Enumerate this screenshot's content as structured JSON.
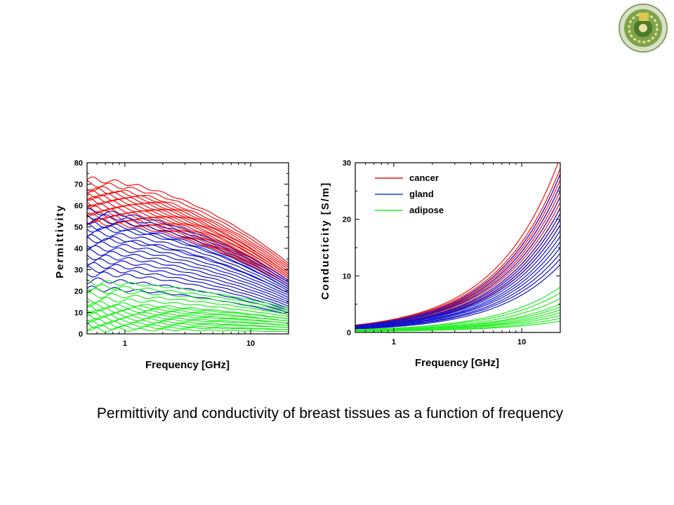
{
  "caption": "Permittivity and conductivity of breast tissues as a function of frequency",
  "colors": {
    "cancer": "#ee1111",
    "gland": "#1111cc",
    "adipose": "#22ee22"
  },
  "chart_data": [
    {
      "type": "line",
      "xlabel": "Frequency [GHz]",
      "ylabel": "Permittivity",
      "xscale": "log",
      "xlim": [
        0.5,
        20
      ],
      "ylim": [
        0,
        80
      ],
      "x_ticks": [
        {
          "value": 1,
          "label": "1"
        },
        {
          "value": 10,
          "label": "10"
        }
      ],
      "y_ticks": [
        {
          "value": 0,
          "label": "0"
        },
        {
          "value": 10,
          "label": "10"
        },
        {
          "value": 20,
          "label": "20"
        },
        {
          "value": 30,
          "label": "30"
        },
        {
          "value": 40,
          "label": "40"
        },
        {
          "value": 50,
          "label": "50"
        },
        {
          "value": 60,
          "label": "60"
        },
        {
          "value": 70,
          "label": "70"
        },
        {
          "value": 80,
          "label": "80"
        }
      ],
      "groups": [
        {
          "tissue": "cancer",
          "color": "#ee1111",
          "at_0_5GHz": [
            72,
            70,
            68,
            67,
            66,
            65,
            64,
            63,
            62,
            61,
            60,
            59,
            58,
            57,
            56,
            55,
            54,
            53,
            52
          ],
          "at_20GHz": [
            33,
            32,
            31,
            30,
            29,
            28,
            28,
            27,
            27,
            26,
            26,
            25,
            25,
            24,
            24,
            23,
            23,
            22,
            22
          ]
        },
        {
          "tissue": "gland",
          "color": "#1111cc",
          "at_0_5GHz": [
            57,
            55,
            53,
            51,
            50,
            49,
            47,
            45,
            44,
            42,
            40,
            38,
            36,
            34,
            32,
            30,
            28,
            25,
            21
          ],
          "at_20GHz": [
            25,
            24,
            23,
            22,
            21,
            21,
            20,
            19,
            19,
            18,
            17,
            16,
            15,
            14,
            13,
            12,
            11,
            10,
            9
          ]
        },
        {
          "tissue": "adipose",
          "color": "#22ee22",
          "at_0_5GHz": [
            24,
            22,
            20,
            18,
            16,
            14,
            13,
            12,
            11,
            10,
            9,
            8,
            7,
            6,
            5,
            4,
            3,
            2
          ],
          "at_20GHz": [
            12,
            11,
            10,
            9,
            8,
            7,
            7,
            6,
            6,
            5,
            5,
            4,
            4,
            3,
            3,
            2,
            2,
            1
          ]
        }
      ]
    },
    {
      "type": "line",
      "xlabel": "Frequency [GHz]",
      "ylabel": "Conducticity [S/m]",
      "xscale": "log",
      "xlim": [
        0.5,
        20
      ],
      "ylim": [
        0,
        30
      ],
      "x_ticks": [
        {
          "value": 1,
          "label": "1"
        },
        {
          "value": 10,
          "label": "10"
        }
      ],
      "y_ticks": [
        {
          "value": 0,
          "label": "0"
        },
        {
          "value": 10,
          "label": "10"
        },
        {
          "value": 20,
          "label": "20"
        },
        {
          "value": 30,
          "label": "30"
        }
      ],
      "legend": {
        "position": "top-left",
        "entries": [
          {
            "label": "cancer",
            "color": "#ee1111"
          },
          {
            "label": "gland",
            "color": "#1144cc"
          },
          {
            "label": "adipose",
            "color": "#22ee22"
          }
        ]
      },
      "groups": [
        {
          "tissue": "cancer",
          "color": "#ee1111",
          "at_0_5GHz": [
            1.3,
            1.3,
            1.2,
            1.2,
            1.2,
            1.1,
            1.1,
            1.1,
            1.0,
            1.0,
            1.0,
            1.0
          ],
          "at_20GHz": [
            31,
            29,
            28,
            27,
            26,
            25,
            24,
            23,
            22,
            21,
            20,
            19
          ]
        },
        {
          "tissue": "gland",
          "color": "#1111cc",
          "at_0_5GHz": [
            1.2,
            1.1,
            1.1,
            1.0,
            1.0,
            0.9,
            0.9,
            0.9,
            0.8,
            0.8,
            0.8,
            0.7,
            0.7,
            0.6
          ],
          "at_20GHz": [
            28,
            26,
            24,
            22,
            21,
            20,
            19,
            18,
            17,
            16,
            15,
            14,
            13,
            12
          ]
        },
        {
          "tissue": "adipose",
          "color": "#22ee22",
          "at_0_5GHz": [
            0.5,
            0.5,
            0.4,
            0.4,
            0.4,
            0.3,
            0.3,
            0.3,
            0.2,
            0.2
          ],
          "at_20GHz": [
            8,
            7,
            6,
            5,
            4.5,
            4,
            3.5,
            3,
            2.5,
            2
          ]
        }
      ]
    }
  ]
}
